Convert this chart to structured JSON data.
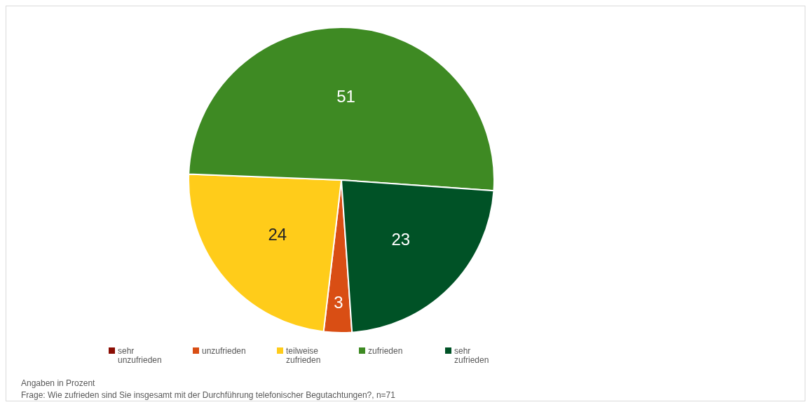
{
  "chart_data": {
    "type": "pie",
    "categories": [
      "sehr unzufrieden",
      "unzufrieden",
      "teilweise zufrieden",
      "zufrieden",
      "sehr zufrieden"
    ],
    "values": [
      0,
      3,
      24,
      51,
      23
    ],
    "colors": [
      "#8b0e04",
      "#d94e14",
      "#ffcc1a",
      "#3e8a23",
      "#005226"
    ],
    "value_labels": [
      null,
      "3",
      "24",
      "51",
      "23"
    ],
    "legend": "bottom",
    "annotations": [
      "Angaben in Prozent",
      "Frage: Wie zufrieden sind Sie insgesamt mit der Durchführung telefonischer Begutachtungen?, n=71"
    ]
  }
}
